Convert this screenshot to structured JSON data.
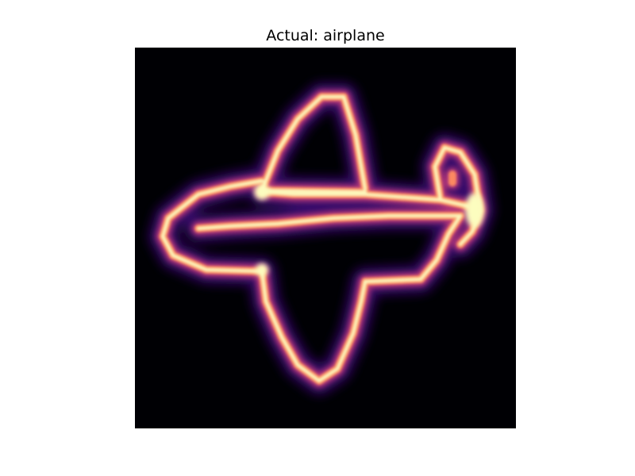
{
  "figure": {
    "title": "Actual: airplane"
  },
  "image": {
    "subject": "airplane",
    "colormap": "magma",
    "colors": {
      "background": "#000004",
      "outer_glow": "#3b0f70",
      "mid_glow": "#8c2981",
      "warm": "#de4968",
      "hot": "#fe9f6d",
      "core": "#fcfdbf"
    }
  }
}
